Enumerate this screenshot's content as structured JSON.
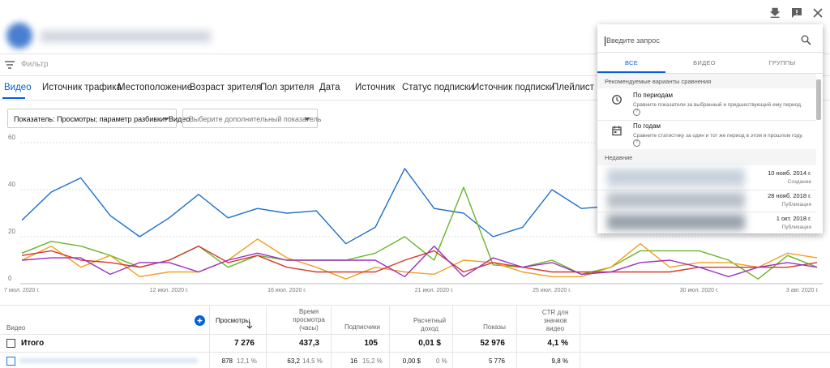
{
  "filter_placeholder": "Фильтр",
  "tabs": [
    "Видео",
    "Источник трафика",
    "Местоположение",
    "Возраст зрителя",
    "Пол зрителя",
    "Дата",
    "Источник",
    "Статус подписки",
    "Источник подписки",
    "Плейлист"
  ],
  "selectors": {
    "metric": "Показатель: Просмотры; параметр разбивки: Видео",
    "extra": "Выберите дополнительный показатель"
  },
  "chart_data": {
    "type": "line",
    "categories": [
      "7 июл. 2020 г.",
      null,
      null,
      null,
      null,
      "12 июл. 2020 г.",
      null,
      null,
      null,
      "16 июл. 2020 г.",
      null,
      null,
      null,
      null,
      "21 июл. 2020 г.",
      null,
      null,
      null,
      "25 июл. 2020 г.",
      null,
      null,
      null,
      null,
      "30 июл. 2020 г.",
      null,
      null,
      null,
      "3 авг. 2020 г."
    ],
    "series": [
      {
        "color": "#1e6fc9",
        "values": [
          27,
          39,
          45,
          29,
          20,
          28,
          38,
          28,
          32,
          30,
          31,
          17,
          24,
          49,
          32,
          30,
          20,
          24,
          40,
          32,
          33,
          31,
          34,
          32,
          33,
          31,
          34,
          33
        ]
      },
      {
        "color": "#6ab42a",
        "values": [
          13,
          18,
          16,
          12,
          7,
          10,
          16,
          7,
          12,
          10,
          10,
          10,
          13,
          20,
          10,
          41,
          8,
          7,
          10,
          4,
          7,
          14,
          14,
          14,
          10,
          2,
          12,
          7
        ]
      },
      {
        "color": "#f0a020",
        "values": [
          10,
          16,
          7,
          12,
          3,
          5,
          5,
          10,
          19,
          11,
          7,
          2,
          7,
          5,
          4,
          10,
          9,
          5,
          3,
          3,
          7,
          17,
          7,
          9,
          9,
          7,
          13,
          11
        ]
      },
      {
        "color": "#d13a2e",
        "values": [
          12,
          14,
          10,
          9,
          7,
          10,
          16,
          9,
          12,
          7,
          5,
          5,
          5,
          10,
          14,
          5,
          9,
          7,
          5,
          5,
          5,
          5,
          5,
          7,
          7,
          7,
          7,
          9
        ]
      },
      {
        "color": "#9b30c0",
        "values": [
          10,
          11,
          11,
          4,
          9,
          9,
          5,
          10,
          13,
          10,
          10,
          10,
          10,
          3,
          16,
          3,
          11,
          7,
          9,
          4,
          5,
          9,
          10,
          7,
          3,
          7,
          9,
          7
        ]
      }
    ],
    "ylim": [
      0,
      60
    ],
    "yticks": [
      0,
      20,
      40,
      60
    ],
    "grid": true
  },
  "table": {
    "columns": [
      "Видео",
      "Просмотры",
      "Время просмотра (часы)",
      "Подписчики",
      "Расчетный доход",
      "Показы",
      "CTR для значков видео"
    ],
    "total": [
      "Итого",
      "7 276",
      "437,3",
      "105",
      "0,01 $",
      "52 976",
      "4,1 %"
    ],
    "rows": [
      [
        [
          "878",
          "12,1 %"
        ],
        [
          "63,2",
          "14,5 %"
        ],
        [
          "16",
          "15,2 %"
        ],
        [
          "0,00 $",
          "0 %"
        ],
        [
          "5 776"
        ],
        [
          "9,8 %"
        ]
      ]
    ]
  },
  "compare_popup": {
    "search_placeholder": "Введите запрос",
    "tabs": [
      "ВСЕ",
      "ВИДЕО",
      "ГРУППЫ"
    ],
    "suggested_heading": "Рекомендуемые варианты сравнения",
    "suggested": [
      {
        "title": "По периодам",
        "description": "Сравните показатели за выбранный и предшествующий ему период."
      },
      {
        "title": "По годам",
        "description": "Сравните статистику за один и тот же период в этом и прошлом году."
      }
    ],
    "recent_heading": "Недавние",
    "recent": [
      {
        "date": "10 нояб. 2014 г.",
        "kind": "Создание"
      },
      {
        "date": "28 нояб. 2018 г.",
        "kind": "Публикация"
      },
      {
        "date": "1 окт. 2018 г.",
        "kind": "Публикация"
      }
    ]
  }
}
